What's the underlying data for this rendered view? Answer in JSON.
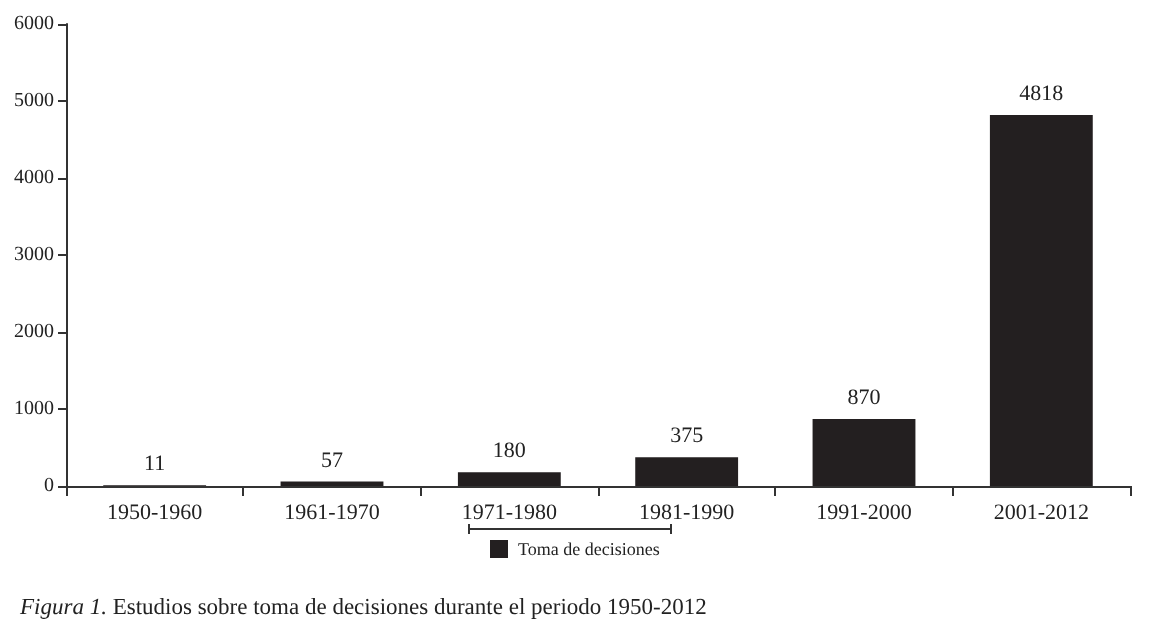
{
  "chart_data": {
    "type": "bar",
    "categories": [
      "1950-1960",
      "1961-1970",
      "1971-1980",
      "1981-1990",
      "1991-2000",
      "2001-2012"
    ],
    "series": [
      {
        "name": "Toma de decisiones",
        "color": "#231f20",
        "values": [
          11,
          57,
          180,
          375,
          870,
          4818
        ]
      }
    ],
    "ylim": [
      0,
      6000
    ],
    "yticks": [
      0,
      1000,
      2000,
      3000,
      4000,
      5000,
      6000
    ],
    "data_labels": true,
    "grid": false,
    "legend": "bottom",
    "annotations": [
      "Figura 1.",
      "Estudios sobre toma de decisiones durante el periodo 1950-2012"
    ]
  }
}
